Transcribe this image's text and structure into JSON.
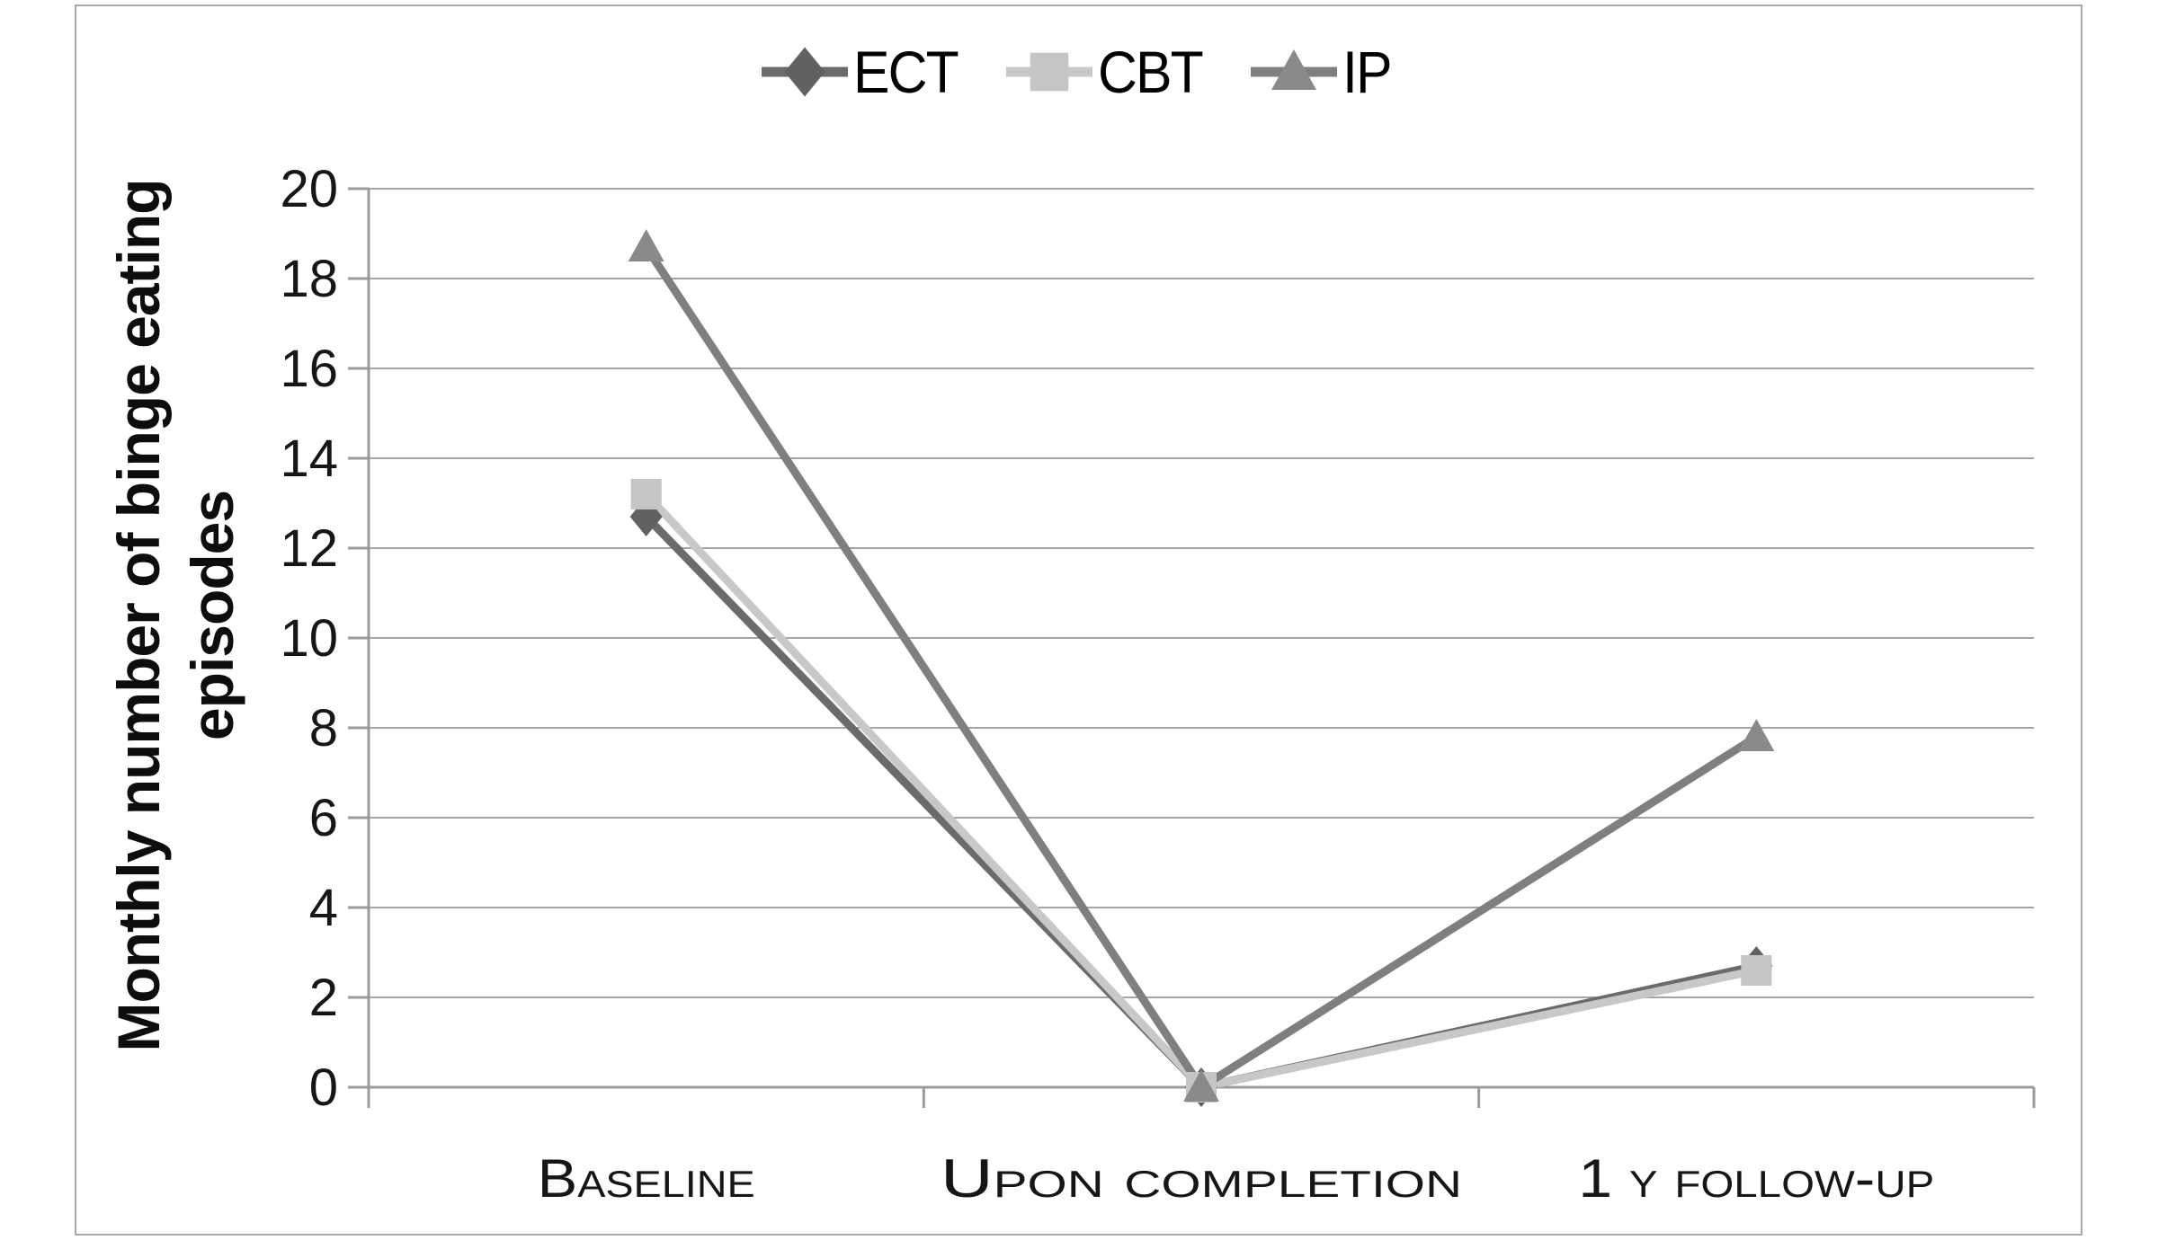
{
  "chart_data": {
    "type": "line",
    "title": "",
    "categories": [
      "Baseline",
      "Upon completion",
      "1 y follow-up"
    ],
    "categories_rendered": [
      "BASELINE",
      "UPON COMPLETION",
      "1 Y FOLLOW-UP"
    ],
    "ylabel": "Monthly number of binge eating episodes",
    "ylabel_lines": [
      "Monthly number of binge eating",
      "episodes"
    ],
    "xlabel": "",
    "ylim": [
      0,
      20
    ],
    "ytick_step": 2,
    "yticks": [
      0,
      2,
      4,
      6,
      8,
      10,
      12,
      14,
      16,
      18,
      20
    ],
    "grid": "horizontal",
    "legend_position": "top",
    "series": [
      {
        "name": "ECT",
        "marker": "diamond",
        "color": "#6b6b6b",
        "marker_color": "#616161",
        "values": [
          12.7,
          0,
          2.7
        ]
      },
      {
        "name": "CBT",
        "marker": "square",
        "color": "#c8c8c8",
        "marker_color": "#c5c5c5",
        "values": [
          13.2,
          0,
          2.6
        ]
      },
      {
        "name": "IP",
        "marker": "triangle",
        "color": "#7f7f7f",
        "marker_color": "#8a8a8a",
        "values": [
          18.7,
          0,
          7.8
        ]
      }
    ],
    "grid_color": "#a4a4a4",
    "axis_color": "#9b9b9b",
    "border_color": "#a9a9a9",
    "text_color": "#161616",
    "background": "#ffffff"
  }
}
